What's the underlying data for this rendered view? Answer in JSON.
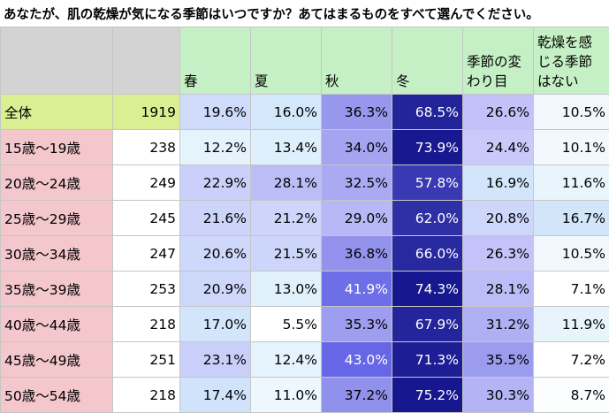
{
  "chart_data": {
    "type": "table",
    "title": "あなたが、肌の乾燥が気になる季節はいつですか？あてはまるものをすべて選んでください。",
    "columns": [
      "春",
      "夏",
      "秋",
      "冬",
      "季節の変わり目",
      "乾燥を感じる季節はない"
    ],
    "rows": [
      {
        "label": "全体",
        "n": "1919",
        "values": [
          "19.6%",
          "16.0%",
          "36.3%",
          "68.5%",
          "26.6%",
          "10.5%"
        ]
      },
      {
        "label": "15歳～19歳",
        "n": "238",
        "values": [
          "12.2%",
          "13.4%",
          "34.0%",
          "73.9%",
          "24.4%",
          "10.1%"
        ]
      },
      {
        "label": "20歳～24歳",
        "n": "249",
        "values": [
          "22.9%",
          "28.1%",
          "32.5%",
          "57.8%",
          "16.9%",
          "11.6%"
        ]
      },
      {
        "label": "25歳～29歳",
        "n": "245",
        "values": [
          "21.6%",
          "21.2%",
          "29.0%",
          "62.0%",
          "20.8%",
          "16.7%"
        ]
      },
      {
        "label": "30歳～34歳",
        "n": "247",
        "values": [
          "20.6%",
          "21.5%",
          "36.8%",
          "66.0%",
          "26.3%",
          "10.5%"
        ]
      },
      {
        "label": "35歳～39歳",
        "n": "253",
        "values": [
          "20.9%",
          "13.0%",
          "41.9%",
          "74.3%",
          "28.1%",
          "7.1%"
        ]
      },
      {
        "label": "40歳～44歳",
        "n": "218",
        "values": [
          "17.0%",
          "5.5%",
          "35.3%",
          "67.9%",
          "31.2%",
          "11.9%"
        ]
      },
      {
        "label": "45歳～49歳",
        "n": "251",
        "values": [
          "23.1%",
          "12.4%",
          "43.0%",
          "71.3%",
          "35.5%",
          "7.2%"
        ]
      },
      {
        "label": "50歳～54歳",
        "n": "218",
        "values": [
          "17.4%",
          "11.0%",
          "37.2%",
          "75.2%",
          "30.3%",
          "8.7%"
        ]
      }
    ]
  },
  "colors": {
    "header_empty": "#d3d3d3",
    "header_category": "#c5f0c5",
    "total_row_label": "#d9ef92",
    "row_label": "#f4c7cd",
    "white": "#ffffff"
  }
}
